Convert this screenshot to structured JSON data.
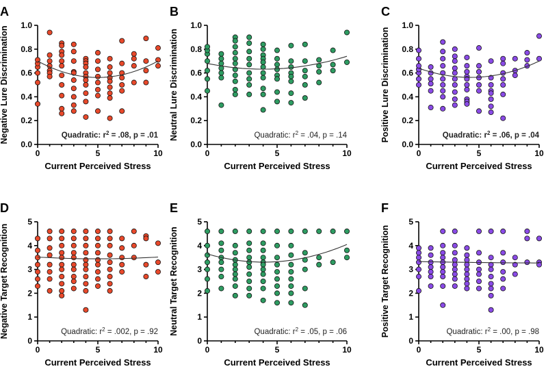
{
  "chart_data": [
    {
      "panel": "A",
      "type": "scatter",
      "xlabel": "Current Perceived Stress",
      "ylabel": "Negative Lure Discrimination",
      "xlim": [
        0,
        10
      ],
      "ylim": [
        0,
        1.0
      ],
      "xticks": [
        "0",
        "5",
        "10"
      ],
      "yticks": [
        "0.0",
        "0.2",
        "0.4",
        "0.6",
        "0.8",
        "1.0"
      ],
      "ytick_values": [
        0,
        0.2,
        0.4,
        0.6,
        0.8,
        1.0
      ],
      "color": "#e8492b",
      "stat": {
        "prefix": "Quadratic: r",
        "sup": "2",
        "text": " = .08, p = .01",
        "bold": true
      },
      "fit": [
        0.7,
        -0.055,
        0.0055
      ],
      "x": [
        0,
        0,
        0,
        0,
        0,
        0,
        1,
        1,
        1,
        1,
        1,
        1,
        1,
        2,
        2,
        2,
        2,
        2,
        2,
        2,
        2,
        2,
        2,
        2,
        3,
        3,
        3,
        3,
        3,
        3,
        3,
        3,
        3,
        3,
        4,
        4,
        4,
        4,
        4,
        4,
        4,
        4,
        4,
        4,
        4,
        5,
        5,
        5,
        5,
        5,
        5,
        5,
        5,
        6,
        6,
        6,
        6,
        6,
        6,
        6,
        6,
        6,
        7,
        7,
        7,
        7,
        7,
        7,
        7,
        8,
        8,
        8,
        8,
        9,
        9,
        9,
        9,
        10,
        10,
        10
      ],
      "y": [
        0.34,
        0.52,
        0.6,
        0.65,
        0.68,
        0.71,
        0.94,
        0.75,
        0.7,
        0.66,
        0.62,
        0.6,
        0.57,
        0.85,
        0.83,
        0.78,
        0.75,
        0.7,
        0.66,
        0.58,
        0.5,
        0.41,
        0.3,
        0.26,
        0.84,
        0.78,
        0.7,
        0.61,
        0.6,
        0.54,
        0.47,
        0.4,
        0.33,
        0.28,
        0.72,
        0.7,
        0.68,
        0.65,
        0.6,
        0.57,
        0.54,
        0.5,
        0.43,
        0.36,
        0.23,
        0.77,
        0.7,
        0.63,
        0.57,
        0.52,
        0.46,
        0.41,
        0.28,
        0.72,
        0.65,
        0.6,
        0.56,
        0.53,
        0.48,
        0.43,
        0.39,
        0.22,
        0.87,
        0.68,
        0.6,
        0.56,
        0.5,
        0.45,
        0.28,
        0.76,
        0.72,
        0.66,
        0.52,
        0.89,
        0.7,
        0.62,
        0.52,
        0.81,
        0.71,
        0.66
      ]
    },
    {
      "panel": "B",
      "type": "scatter",
      "xlabel": "Current Perceived Stress",
      "ylabel": "Neutral Lure Discrimination",
      "xlim": [
        0,
        10
      ],
      "ylim": [
        0,
        1.0
      ],
      "xticks": [
        "0",
        "5",
        "10"
      ],
      "yticks": [
        "0.0",
        "0.2",
        "0.4",
        "0.6",
        "0.8",
        "1.0"
      ],
      "ytick_values": [
        0,
        0.2,
        0.4,
        0.6,
        0.8,
        1.0
      ],
      "color": "#2e9c62",
      "stat": {
        "prefix": "Quadratic: r",
        "sup": "2",
        "text": " = .04, p = .14",
        "bold": false
      },
      "fit": [
        0.68,
        -0.024,
        0.003
      ],
      "x": [
        0,
        0,
        0,
        0,
        0,
        0,
        0,
        1,
        1,
        1,
        1,
        1,
        1,
        1,
        2,
        2,
        2,
        2,
        2,
        2,
        2,
        2,
        2,
        2,
        2,
        3,
        3,
        3,
        3,
        3,
        3,
        3,
        3,
        3,
        4,
        4,
        4,
        4,
        4,
        4,
        4,
        4,
        4,
        4,
        4,
        5,
        5,
        5,
        5,
        5,
        5,
        5,
        5,
        6,
        6,
        6,
        6,
        6,
        6,
        6,
        6,
        7,
        7,
        7,
        7,
        7,
        7,
        8,
        8,
        8,
        8,
        9,
        9,
        9,
        10,
        10
      ],
      "y": [
        0.45,
        0.55,
        0.62,
        0.7,
        0.76,
        0.79,
        0.82,
        0.76,
        0.72,
        0.68,
        0.64,
        0.6,
        0.56,
        0.33,
        0.9,
        0.87,
        0.82,
        0.77,
        0.72,
        0.68,
        0.63,
        0.58,
        0.53,
        0.46,
        0.42,
        0.9,
        0.85,
        0.78,
        0.72,
        0.67,
        0.6,
        0.55,
        0.5,
        0.42,
        0.84,
        0.8,
        0.75,
        0.72,
        0.69,
        0.65,
        0.6,
        0.56,
        0.47,
        0.42,
        0.29,
        0.79,
        0.72,
        0.67,
        0.63,
        0.58,
        0.55,
        0.44,
        0.36,
        0.83,
        0.7,
        0.65,
        0.6,
        0.57,
        0.53,
        0.43,
        0.35,
        0.84,
        0.7,
        0.62,
        0.57,
        0.5,
        0.39,
        0.71,
        0.66,
        0.61,
        0.52,
        0.79,
        0.67,
        0.62,
        0.94,
        0.69
      ]
    },
    {
      "panel": "C",
      "type": "scatter",
      "xlabel": "Current Perceived Stress",
      "ylabel": "Positive Lure Discrimination",
      "xlim": [
        0,
        10
      ],
      "ylim": [
        0,
        1.0
      ],
      "xticks": [
        "0",
        "5",
        "10"
      ],
      "yticks": [
        "0.0",
        "0.2",
        "0.4",
        "0.6",
        "0.8",
        "1.0"
      ],
      "ytick_values": [
        0,
        0.2,
        0.4,
        0.6,
        0.8,
        1.0
      ],
      "color": "#8a4be6",
      "stat": {
        "prefix": "Quadratic: r",
        "sup": "2",
        "text": " = .06, p = .04",
        "bold": true
      },
      "fit": [
        0.64,
        -0.036,
        0.0042
      ],
      "x": [
        0,
        0,
        0,
        0,
        0,
        0,
        0,
        1,
        1,
        1,
        1,
        1,
        1,
        2,
        2,
        2,
        2,
        2,
        2,
        2,
        2,
        2,
        2,
        3,
        3,
        3,
        3,
        3,
        3,
        3,
        3,
        3,
        3,
        4,
        4,
        4,
        4,
        4,
        4,
        4,
        4,
        4,
        4,
        5,
        5,
        5,
        5,
        5,
        5,
        5,
        6,
        6,
        6,
        6,
        6,
        6,
        6,
        6,
        7,
        7,
        7,
        7,
        7,
        7,
        7,
        8,
        8,
        8,
        9,
        9,
        9,
        10,
        10
      ],
      "y": [
        0.5,
        0.55,
        0.6,
        0.63,
        0.66,
        0.72,
        0.79,
        0.65,
        0.6,
        0.55,
        0.51,
        0.45,
        0.31,
        0.86,
        0.78,
        0.72,
        0.66,
        0.6,
        0.55,
        0.5,
        0.45,
        0.4,
        0.3,
        0.8,
        0.74,
        0.7,
        0.64,
        0.6,
        0.55,
        0.5,
        0.44,
        0.38,
        0.33,
        0.73,
        0.66,
        0.61,
        0.57,
        0.55,
        0.5,
        0.46,
        0.38,
        0.36,
        0.34,
        0.81,
        0.66,
        0.61,
        0.56,
        0.5,
        0.45,
        0.28,
        0.7,
        0.56,
        0.5,
        0.45,
        0.43,
        0.38,
        0.32,
        0.27,
        0.72,
        0.68,
        0.6,
        0.55,
        0.5,
        0.42,
        0.22,
        0.72,
        0.62,
        0.58,
        0.77,
        0.71,
        0.66,
        0.91,
        0.72
      ]
    },
    {
      "panel": "D",
      "type": "scatter",
      "xlabel": "Current Perceived Stress",
      "ylabel": "Negative Target Recognition",
      "xlim": [
        0,
        10
      ],
      "ylim": [
        0,
        5
      ],
      "xticks": [
        "0",
        "5",
        "10"
      ],
      "yticks": [
        "0",
        "1",
        "2",
        "3",
        "4",
        "5"
      ],
      "ytick_values": [
        0,
        1,
        2,
        3,
        4,
        5
      ],
      "color": "#e8492b",
      "stat": {
        "prefix": "Quadratic: r",
        "sup": "2",
        "text": " = .002, p = .92",
        "bold": false
      },
      "fit": [
        3.52,
        -0.03,
        0.003
      ],
      "x": [
        0,
        0,
        0,
        0,
        0,
        0,
        0,
        1,
        1,
        1,
        1,
        1,
        1,
        1,
        1,
        2,
        2,
        2,
        2,
        2,
        2,
        2,
        2,
        2,
        2,
        2,
        3,
        3,
        3,
        3,
        3,
        3,
        3,
        3,
        3,
        3,
        4,
        4,
        4,
        4,
        4,
        4,
        4,
        4,
        4,
        4,
        4,
        5,
        5,
        5,
        5,
        5,
        5,
        5,
        5,
        5,
        6,
        6,
        6,
        6,
        6,
        6,
        6,
        6,
        6,
        7,
        7,
        7,
        7,
        7,
        8,
        8,
        8,
        9,
        9,
        9,
        9,
        10,
        10,
        10
      ],
      "y": [
        2.3,
        2.6,
        2.9,
        3.2,
        3.5,
        3.8,
        4.3,
        4.6,
        4.3,
        3.9,
        3.6,
        3.2,
        2.9,
        2.6,
        2.1,
        4.6,
        4.3,
        4.0,
        3.7,
        3.5,
        3.2,
        3.0,
        2.7,
        2.4,
        2.1,
        1.9,
        4.6,
        4.3,
        4.0,
        3.7,
        3.5,
        3.2,
        3.0,
        2.7,
        2.5,
        2.2,
        4.6,
        4.3,
        4.0,
        3.7,
        3.4,
        3.2,
        3.0,
        2.7,
        2.4,
        2.1,
        1.3,
        4.6,
        4.3,
        4.0,
        3.7,
        3.4,
        3.2,
        2.9,
        2.6,
        2.3,
        4.6,
        4.3,
        4.0,
        3.6,
        3.3,
        3.0,
        2.7,
        2.4,
        2.1,
        4.3,
        3.9,
        3.5,
        3.2,
        2.9,
        4.6,
        4.0,
        3.5,
        4.4,
        4.3,
        3.2,
        2.7,
        4.1,
        3.3,
        2.9
      ]
    },
    {
      "panel": "E",
      "type": "scatter",
      "xlabel": "Current Perceived Stress",
      "ylabel": "Neutral Target Recognition",
      "xlim": [
        0,
        10
      ],
      "ylim": [
        0,
        5
      ],
      "xticks": [
        "0",
        "5",
        "10"
      ],
      "yticks": [
        "0",
        "1",
        "2",
        "3",
        "4",
        "5"
      ],
      "ytick_values": [
        0,
        1,
        2,
        3,
        4,
        5
      ],
      "color": "#2e9c62",
      "stat": {
        "prefix": "Quadratic: r",
        "sup": "2",
        "text": " = .05, p = .06",
        "bold": false
      },
      "fit": [
        3.65,
        -0.17,
        0.021
      ],
      "x": [
        0,
        0,
        0,
        0,
        0,
        0,
        0,
        1,
        1,
        1,
        1,
        1,
        1,
        1,
        1,
        2,
        2,
        2,
        2,
        2,
        2,
        2,
        2,
        2,
        2,
        3,
        3,
        3,
        3,
        3,
        3,
        3,
        3,
        3,
        3,
        4,
        4,
        4,
        4,
        4,
        4,
        4,
        4,
        4,
        4,
        4,
        5,
        5,
        5,
        5,
        5,
        5,
        5,
        5,
        5,
        6,
        6,
        6,
        6,
        6,
        6,
        6,
        6,
        6,
        7,
        7,
        7,
        7,
        7,
        7,
        8,
        8,
        8,
        9,
        9,
        10,
        10,
        10
      ],
      "y": [
        2.1,
        2.6,
        3.0,
        3.3,
        3.6,
        4.0,
        4.6,
        4.6,
        4.1,
        3.8,
        3.5,
        3.3,
        3.0,
        2.7,
        2.2,
        4.6,
        4.0,
        3.7,
        3.4,
        3.2,
        3.0,
        2.8,
        2.6,
        2.3,
        1.9,
        4.6,
        4.1,
        3.8,
        3.5,
        3.3,
        3.1,
        2.8,
        2.5,
        2.2,
        1.9,
        4.6,
        4.1,
        3.8,
        3.5,
        3.3,
        3.2,
        3.0,
        2.8,
        2.5,
        2.2,
        1.7,
        4.6,
        4.0,
        3.5,
        3.2,
        2.9,
        2.6,
        2.3,
        2.0,
        1.6,
        4.6,
        4.0,
        3.6,
        3.2,
        2.9,
        2.6,
        2.3,
        2.0,
        1.6,
        4.6,
        3.7,
        3.4,
        3.0,
        2.2,
        1.5,
        4.6,
        3.5,
        3.2,
        4.6,
        3.3,
        4.6,
        3.8,
        3.5
      ]
    },
    {
      "panel": "F",
      "type": "scatter",
      "xlabel": "Current Perceived Stress",
      "ylabel": "Positive Target Recognition",
      "xlim": [
        0,
        10
      ],
      "ylim": [
        0,
        5
      ],
      "xticks": [
        "0",
        "5",
        "10"
      ],
      "yticks": [
        "0",
        "1",
        "2",
        "3",
        "4",
        "5"
      ],
      "ytick_values": [
        0,
        1,
        2,
        3,
        4,
        5
      ],
      "color": "#8a4be6",
      "stat": {
        "prefix": "Quadratic: r",
        "sup": "2",
        "text": " = .00, p = .98",
        "bold": false
      },
      "fit": [
        3.33,
        -0.01,
        0.0004
      ],
      "x": [
        0,
        0,
        0,
        0,
        0,
        0,
        0,
        1,
        1,
        1,
        1,
        1,
        1,
        1,
        2,
        2,
        2,
        2,
        2,
        2,
        2,
        2,
        2,
        2,
        3,
        3,
        3,
        3,
        3,
        3,
        3,
        3,
        3,
        4,
        4,
        4,
        4,
        4,
        4,
        4,
        4,
        4,
        5,
        5,
        5,
        5,
        5,
        5,
        5,
        6,
        6,
        6,
        6,
        6,
        6,
        6,
        6,
        6,
        7,
        7,
        7,
        7,
        7,
        7,
        8,
        8,
        8,
        9,
        9,
        9,
        10,
        10,
        10
      ],
      "y": [
        2.1,
        2.7,
        3.0,
        3.3,
        3.5,
        3.7,
        3.9,
        3.9,
        3.6,
        3.3,
        3.1,
        2.9,
        2.7,
        2.3,
        4.6,
        4.0,
        3.7,
        3.5,
        3.3,
        3.1,
        2.9,
        2.7,
        2.3,
        1.5,
        4.6,
        4.0,
        3.7,
        3.4,
        3.2,
        3.0,
        2.8,
        2.6,
        2.3,
        3.9,
        3.6,
        3.4,
        3.2,
        3.0,
        2.8,
        2.6,
        2.4,
        2.2,
        4.6,
        3.7,
        3.3,
        3.0,
        2.8,
        2.5,
        2.2,
        4.6,
        3.5,
        3.2,
        3.0,
        2.7,
        2.4,
        2.2,
        1.9,
        1.3,
        4.6,
        3.7,
        3.3,
        2.9,
        2.6,
        2.2,
        3.5,
        3.2,
        2.8,
        4.6,
        4.3,
        3.3,
        4.3,
        3.3,
        3.2
      ]
    }
  ]
}
